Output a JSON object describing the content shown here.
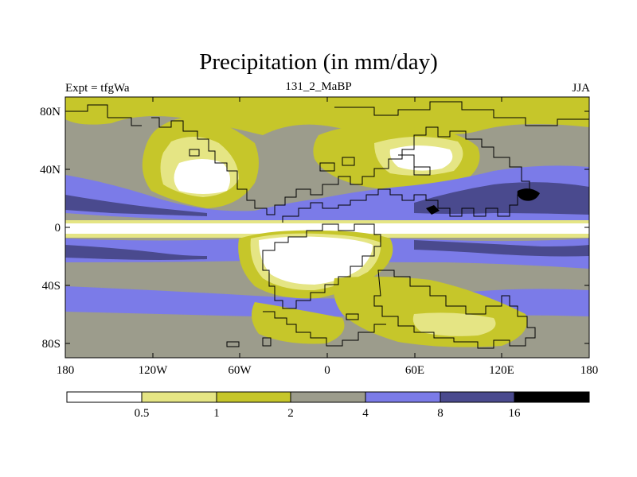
{
  "title": "Precipitation (in mm/day)",
  "left_label": "Expt = tfgWa",
  "center_label": "131_2_MaBP",
  "right_label": "JJA",
  "colors": {
    "c0": "#ffffff",
    "c1": "#e5e584",
    "c2": "#c6c62a",
    "c3": "#9c9c8c",
    "c4": "#7b7be8",
    "c5": "#4a4a8e",
    "c6": "#000000"
  },
  "map": {
    "lat_ticks": [
      "80N",
      "40N",
      "0",
      "40S",
      "80S"
    ],
    "lon_ticks": [
      "180",
      "120W",
      "60W",
      "0",
      "60E",
      "120E",
      "180"
    ]
  },
  "colorbar": {
    "levels": [
      "0.5",
      "1",
      "2",
      "4",
      "8",
      "16"
    ],
    "bins": 7
  }
}
